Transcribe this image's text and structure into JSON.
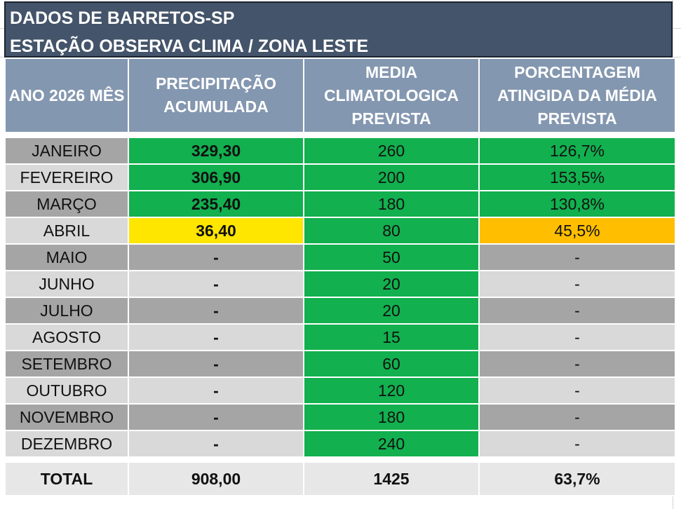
{
  "title": {
    "line1": "DADOS DE BARRETOS-SP",
    "line2": "ESTAÇÃO OBSERVA CLIMA / ZONA LESTE"
  },
  "headers": {
    "col1": "ANO 2026 MÊS",
    "col2": "PRECIPITAÇÃO ACUMULADA",
    "col3": "MEDIA CLIMATOLOGICA PREVISTA",
    "col4": "PORCENTAGEM ATINGIDA DA MÉDIA PREVISTA"
  },
  "rows": [
    {
      "month": "JANEIRO",
      "precip": "329,30",
      "media": "260",
      "pct": "126,7%"
    },
    {
      "month": "FEVEREIRO",
      "precip": "306,90",
      "media": "200",
      "pct": "153,5%"
    },
    {
      "month": "MARÇO",
      "precip": "235,40",
      "media": "180",
      "pct": "130,8%"
    },
    {
      "month": "ABRIL",
      "precip": "36,40",
      "media": "80",
      "pct": "45,5%"
    },
    {
      "month": "MAIO",
      "precip": "-",
      "media": "50",
      "pct": "-"
    },
    {
      "month": "JUNHO",
      "precip": "-",
      "media": "20",
      "pct": "-"
    },
    {
      "month": "JULHO",
      "precip": "-",
      "media": "20",
      "pct": "-"
    },
    {
      "month": "AGOSTO",
      "precip": "-",
      "media": "15",
      "pct": "-"
    },
    {
      "month": "SETEMBRO",
      "precip": "-",
      "media": "60",
      "pct": "-"
    },
    {
      "month": "OUTUBRO",
      "precip": "-",
      "media": "120",
      "pct": "-"
    },
    {
      "month": "NOVEMBRO",
      "precip": "-",
      "media": "180",
      "pct": "-"
    },
    {
      "month": "DEZEMBRO",
      "precip": "-",
      "media": "240",
      "pct": "-"
    }
  ],
  "total": {
    "label": "TOTAL",
    "precip": "908,00",
    "media": "1425",
    "pct": "63,7%"
  },
  "colors": {
    "title_bg": "#44546a",
    "header_bg": "#8497b0",
    "green": "#12b04f",
    "yellow": "#ffe600",
    "orange": "#ffbe00",
    "lime": "#b5e61d",
    "light_green": "#92d050",
    "gray_dark": "#a5a5a5",
    "gray_light": "#d9d9d9"
  }
}
